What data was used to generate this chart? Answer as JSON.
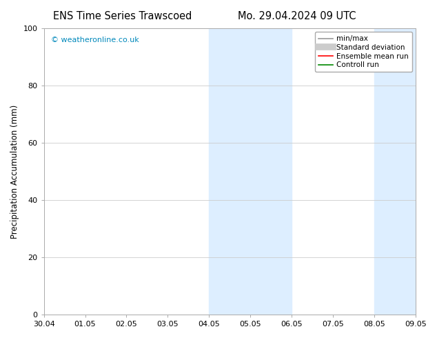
{
  "title_left": "ENS Time Series Trawscoed",
  "title_right": "Mo. 29.04.2024 09 UTC",
  "ylabel": "Precipitation Accumulation (mm)",
  "ylim": [
    0,
    100
  ],
  "yticks": [
    0,
    20,
    40,
    60,
    80,
    100
  ],
  "xtick_labels": [
    "30.04",
    "01.05",
    "02.05",
    "03.05",
    "04.05",
    "05.05",
    "06.05",
    "07.05",
    "08.05",
    "09.05"
  ],
  "watermark": "© weatheronline.co.uk",
  "watermark_color": "#0088bb",
  "shaded_regions": [
    {
      "xstart": 4.0,
      "xend": 5.0
    },
    {
      "xstart": 5.0,
      "xend": 6.0
    },
    {
      "xstart": 8.0,
      "xend": 8.5
    },
    {
      "xstart": 8.5,
      "xend": 9.0
    }
  ],
  "shade_color": "#ddeeff",
  "legend_entries": [
    {
      "label": "min/max",
      "color": "#999999",
      "lw": 1.2
    },
    {
      "label": "Standard deviation",
      "color": "#cccccc",
      "lw": 6
    },
    {
      "label": "Ensemble mean run",
      "color": "#ff0000",
      "lw": 1.2
    },
    {
      "label": "Controll run",
      "color": "#008800",
      "lw": 1.2
    }
  ],
  "bg_color": "#ffffff",
  "grid_color": "#cccccc",
  "title_fontsize": 10.5,
  "tick_fontsize": 8,
  "label_fontsize": 8.5,
  "legend_fontsize": 7.5
}
